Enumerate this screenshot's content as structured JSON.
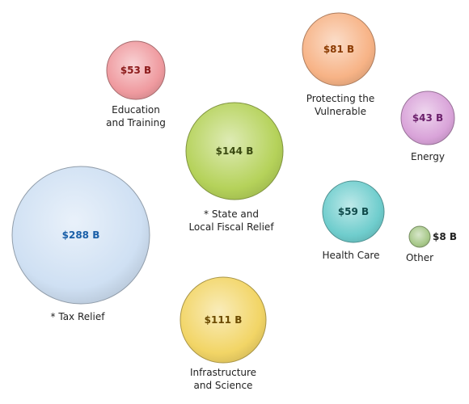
{
  "chart_data": {
    "type": "bubble",
    "unit": "B",
    "bubbles": [
      {
        "id": "education",
        "label_lines": [
          "Education",
          "and Training"
        ],
        "value": 53,
        "display": "$53 B",
        "color": "#ef9a9f",
        "text_color": "#8b1a1a"
      },
      {
        "id": "vulnerable",
        "label_lines": [
          "Protecting the",
          "Vulnerable"
        ],
        "value": 81,
        "display": "$81 B",
        "color": "#f7b386",
        "text_color": "#8a3a00"
      },
      {
        "id": "energy",
        "label_lines": [
          "Energy"
        ],
        "value": 43,
        "display": "$43 B",
        "color": "#d9a3d9",
        "text_color": "#6b1f6b"
      },
      {
        "id": "state-fiscal",
        "label_lines": [
          "* State and",
          "Local Fiscal Relief"
        ],
        "value": 144,
        "display": "$144 B",
        "color": "#b5d25a",
        "text_color": "#3a4a10"
      },
      {
        "id": "health",
        "label_lines": [
          "Health Care"
        ],
        "value": 59,
        "display": "$59 B",
        "color": "#6fcdcd",
        "text_color": "#0f4a4a"
      },
      {
        "id": "other",
        "label_lines": [
          "Other"
        ],
        "value": 8,
        "display": "$8 B",
        "color": "#a7c889",
        "text_color": "#222222"
      },
      {
        "id": "tax",
        "label_lines": [
          "* Tax Relief"
        ],
        "value": 288,
        "display": "$288 B",
        "color": "#cfe0f3",
        "text_color": "#1a5fa8"
      },
      {
        "id": "infrastructure",
        "label_lines": [
          "Infrastructure",
          "and Science"
        ],
        "value": 111,
        "display": "$111 B",
        "color": "#f2d566",
        "text_color": "#6b4a00"
      }
    ]
  }
}
